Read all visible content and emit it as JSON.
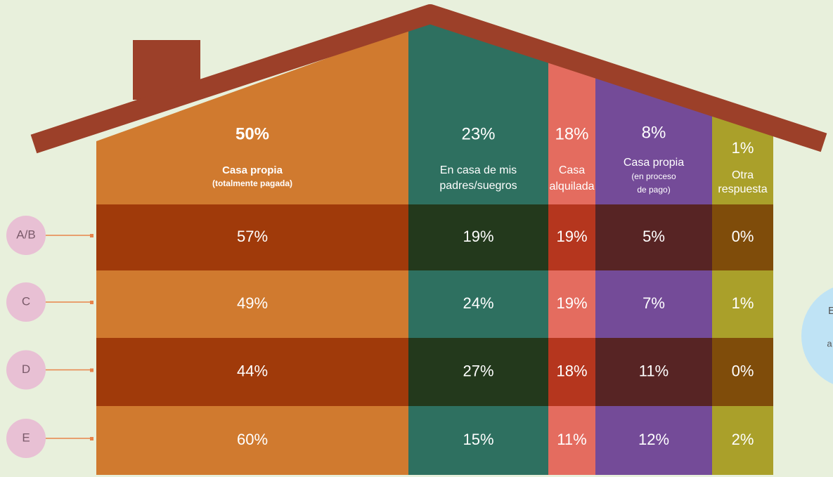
{
  "columns": [
    {
      "total": "50%",
      "label": [
        "Casa propia",
        "(totalmente pagada)"
      ]
    },
    {
      "total": "23%",
      "label": [
        "En casa de mis",
        "padres/suegros"
      ]
    },
    {
      "total": "18%",
      "label": [
        "Casa",
        "alquilada"
      ]
    },
    {
      "total": "8%",
      "label": [
        "Casa propia",
        "(en proceso",
        "de pago)"
      ]
    },
    {
      "total": "1%",
      "label": [
        "Otra",
        "respuesta"
      ]
    }
  ],
  "rows": [
    {
      "label": "A/B",
      "values": [
        "57%",
        "19%",
        "19%",
        "5%",
        "0%"
      ]
    },
    {
      "label": "C",
      "values": [
        "49%",
        "24%",
        "19%",
        "7%",
        "1%"
      ]
    },
    {
      "label": "D",
      "values": [
        "44%",
        "27%",
        "18%",
        "11%",
        "0%"
      ]
    },
    {
      "label": "E",
      "values": [
        "60%",
        "15%",
        "11%",
        "12%",
        "2%"
      ]
    }
  ],
  "side_note": [
    "E",
    "a"
  ]
}
